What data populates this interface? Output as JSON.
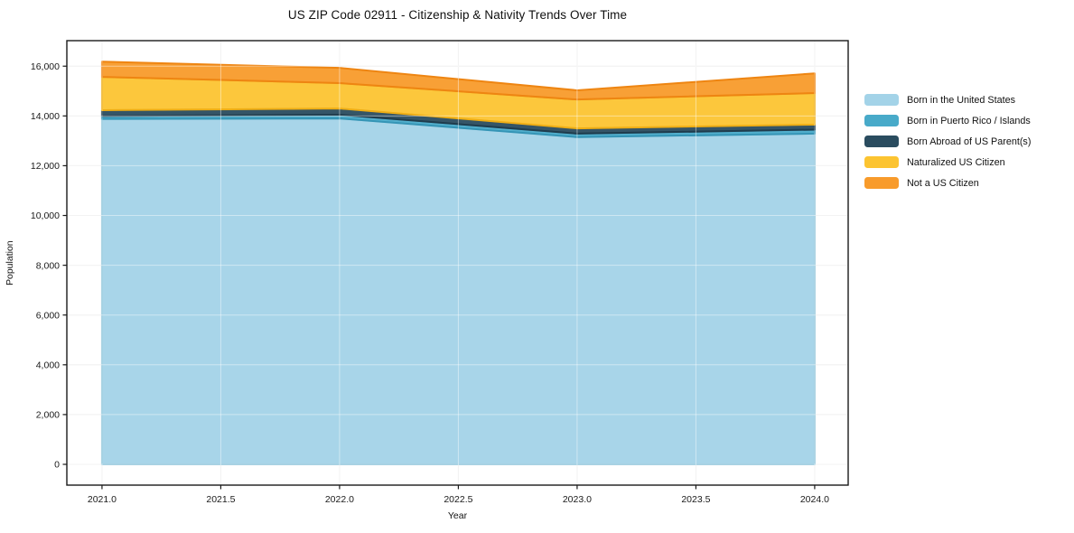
{
  "figure": {
    "title": "US ZIP Code 02911 - Citizenship & Nativity Trends Over Time"
  },
  "chart_data": {
    "type": "area",
    "stacked": true,
    "title": "US ZIP Code 02911 - Citizenship & Nativity Trends Over Time",
    "xlabel": "Year",
    "ylabel": "Population",
    "x": [
      2021,
      2022,
      2023,
      2024
    ],
    "series": [
      {
        "name": "Born in the United States",
        "color": "#a3d3e8",
        "edge": "#8ec5db",
        "values": [
          13880,
          13900,
          13150,
          13290
        ]
      },
      {
        "name": "Born in Puerto Rico / Islands",
        "color": "#48aac9",
        "edge": "#3595b6",
        "values": [
          120,
          150,
          140,
          160
        ]
      },
      {
        "name": "Born Abroad of US Parent(s)",
        "color": "#2a4c5f",
        "edge": "#1f3c4d",
        "values": [
          230,
          250,
          210,
          200
        ]
      },
      {
        "name": "Naturalized US Citizen",
        "color": "#fcc431",
        "edge": "#efae15",
        "values": [
          1340,
          1020,
          1160,
          1270
        ]
      },
      {
        "name": "Not a US Citizen",
        "color": "#f89b2b",
        "edge": "#ee8512",
        "values": [
          610,
          610,
          370,
          790
        ]
      }
    ],
    "x_ticks": [
      {
        "v": 2021.0,
        "label": "2021.0"
      },
      {
        "v": 2021.5,
        "label": "2021.5"
      },
      {
        "v": 2022.0,
        "label": "2022.0"
      },
      {
        "v": 2022.5,
        "label": "2022.5"
      },
      {
        "v": 2023.0,
        "label": "2023.0"
      },
      {
        "v": 2023.5,
        "label": "2023.5"
      },
      {
        "v": 2024.0,
        "label": "2024.0"
      }
    ],
    "y_ticks": [
      {
        "v": 0,
        "label": "0"
      },
      {
        "v": 2000,
        "label": "2,000"
      },
      {
        "v": 4000,
        "label": "4,000"
      },
      {
        "v": 6000,
        "label": "6,000"
      },
      {
        "v": 8000,
        "label": "8,000"
      },
      {
        "v": 10000,
        "label": "10,000"
      },
      {
        "v": 12000,
        "label": "12,000"
      },
      {
        "v": 14000,
        "label": "14,000"
      },
      {
        "v": 16000,
        "label": "16,000"
      }
    ],
    "xlim": [
      2020.852,
      2024.141
    ],
    "ylim": [
      -835,
      17025
    ],
    "grid": true,
    "legend_position": "right",
    "grid_color": "#e9e9e9",
    "spine_color": "#1a1a1a",
    "text_color": "#1a1a1a"
  }
}
